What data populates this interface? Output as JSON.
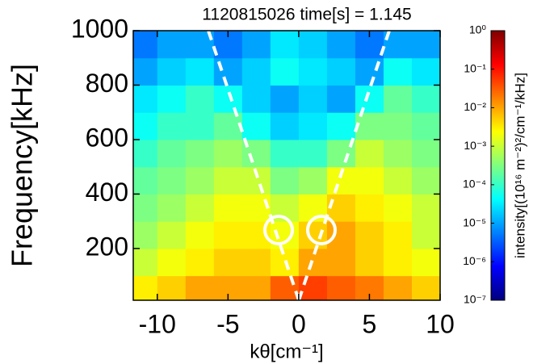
{
  "chart_data": {
    "type": "heatmap",
    "title": "1120815026 time[s] = 1.145",
    "x_label": "kθ[cm⁻¹]",
    "y_label": "Frequency[kHz]",
    "colorbar_label": "intensity[(10¹⁶ m⁻²)²/cm⁻¹/kHz]",
    "xlim": [
      -11.7,
      10
    ],
    "ylim": [
      10,
      1000
    ],
    "xticks": [
      -10,
      -5,
      0,
      5,
      10
    ],
    "yticks": [
      200,
      400,
      600,
      800,
      1000
    ],
    "x_edges": [
      -11.7,
      -10,
      -8,
      -6,
      -4,
      -2,
      0,
      2,
      4,
      6,
      8,
      10
    ],
    "y_edges": [
      10,
      100,
      200,
      300,
      400,
      500,
      600,
      700,
      800,
      900,
      1000
    ],
    "z": [
      [
        0.003,
        0.005,
        0.01,
        0.01,
        0.01,
        0.03,
        0.05,
        0.03,
        0.02,
        0.01,
        0.005
      ],
      [
        0.001,
        0.002,
        0.003,
        0.005,
        0.005,
        0.003,
        0.01,
        0.01,
        0.005,
        0.003,
        0.002
      ],
      [
        0.0005,
        0.001,
        0.002,
        0.003,
        0.003,
        0.002,
        0.005,
        0.01,
        0.005,
        0.003,
        0.001
      ],
      [
        0.0003,
        0.0005,
        0.001,
        0.002,
        0.002,
        0.001,
        0.002,
        0.005,
        0.003,
        0.002,
        0.001
      ],
      [
        0.0002,
        0.0003,
        0.0005,
        0.001,
        0.001,
        0.0003,
        0.0005,
        0.002,
        0.002,
        0.001,
        0.0005
      ],
      [
        0.0001,
        0.0002,
        0.0003,
        0.0005,
        0.0003,
        0.0001,
        0.0001,
        0.0003,
        0.001,
        0.0005,
        0.0003
      ],
      [
        5e-05,
        0.0001,
        0.0001,
        0.0002,
        5e-05,
        2e-05,
        3e-05,
        5e-05,
        0.0003,
        0.0003,
        0.0002
      ],
      [
        3e-05,
        5e-05,
        0.0001,
        5e-05,
        2e-05,
        1e-05,
        2e-05,
        1e-05,
        5e-05,
        0.0002,
        0.0001
      ],
      [
        1e-05,
        2e-05,
        3e-05,
        1e-05,
        2e-05,
        5e-05,
        3e-05,
        2e-05,
        1e-05,
        5e-05,
        3e-05
      ],
      [
        5e-06,
        1e-05,
        1e-05,
        5e-06,
        1e-05,
        3e-05,
        2e-05,
        1e-05,
        5e-06,
        1e-05,
        1e-05
      ]
    ],
    "zscale": "log",
    "zlim": [
      1e-07,
      1
    ],
    "zticks": [
      {
        "value": 1,
        "label": "10⁰"
      },
      {
        "value": 0.1,
        "label": "10⁻¹"
      },
      {
        "value": 0.01,
        "label": "10⁻²"
      },
      {
        "value": 0.001,
        "label": "10⁻³"
      },
      {
        "value": 0.0001,
        "label": "10⁻⁴"
      },
      {
        "value": 1e-05,
        "label": "10⁻⁵"
      },
      {
        "value": 1e-06,
        "label": "10⁻⁶"
      },
      {
        "value": 1e-07,
        "label": "10⁻⁷"
      }
    ],
    "colormap": "jet"
  }
}
